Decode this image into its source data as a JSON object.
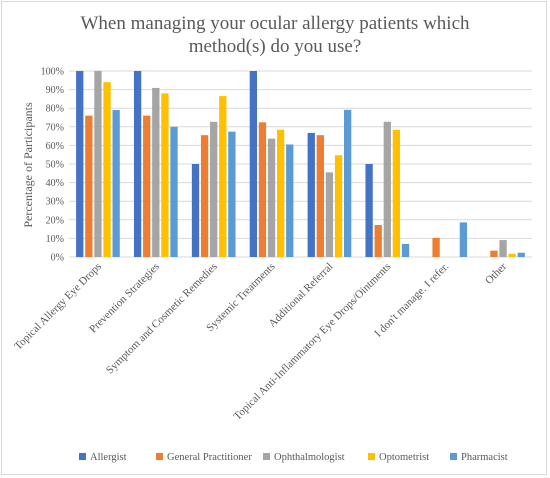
{
  "chart_data": {
    "type": "bar",
    "title_line1": "When managing your ocular allergy patients which",
    "title_line2": "method(s) do you use?",
    "ylabel": "Percentage of Participants",
    "xlabel": "",
    "ylim": [
      0,
      100
    ],
    "y_ticks": [
      "0%",
      "10%",
      "20%",
      "30%",
      "40%",
      "50%",
      "60%",
      "70%",
      "80%",
      "90%",
      "100%"
    ],
    "grid": true,
    "legend_position": "bottom",
    "categories": [
      "Topical Allergy Eye Drops",
      "Prevention Strategies",
      "Symptom and Cosmetic Remedies",
      "Systemic Treatments",
      "Additional Referral",
      "Topical Anti-Inflammatory Eye Drops/Ointments",
      "I don't manage. I refer.",
      "Other"
    ],
    "series": [
      {
        "name": "Allergist",
        "color": "#4472C4",
        "values": [
          100,
          100,
          50,
          100,
          66.7,
          50,
          0,
          0
        ]
      },
      {
        "name": "General Practitioner",
        "color": "#ED7D31",
        "values": [
          76,
          76,
          65.5,
          72.4,
          65.5,
          17.2,
          10.3,
          3.4
        ]
      },
      {
        "name": "Ophthalmologist",
        "color": "#A5A5A5",
        "values": [
          100,
          90.9,
          72.7,
          63.6,
          45.5,
          72.7,
          0,
          9.1
        ]
      },
      {
        "name": "Optometrist",
        "color": "#FFC000",
        "values": [
          94,
          88,
          86.5,
          68.4,
          54.7,
          68.4,
          0,
          1.7
        ]
      },
      {
        "name": "Pharmacist",
        "color": "#5B9BD5",
        "values": [
          79,
          70,
          67.4,
          60.5,
          79.1,
          7,
          18.6,
          2.3
        ]
      }
    ]
  }
}
